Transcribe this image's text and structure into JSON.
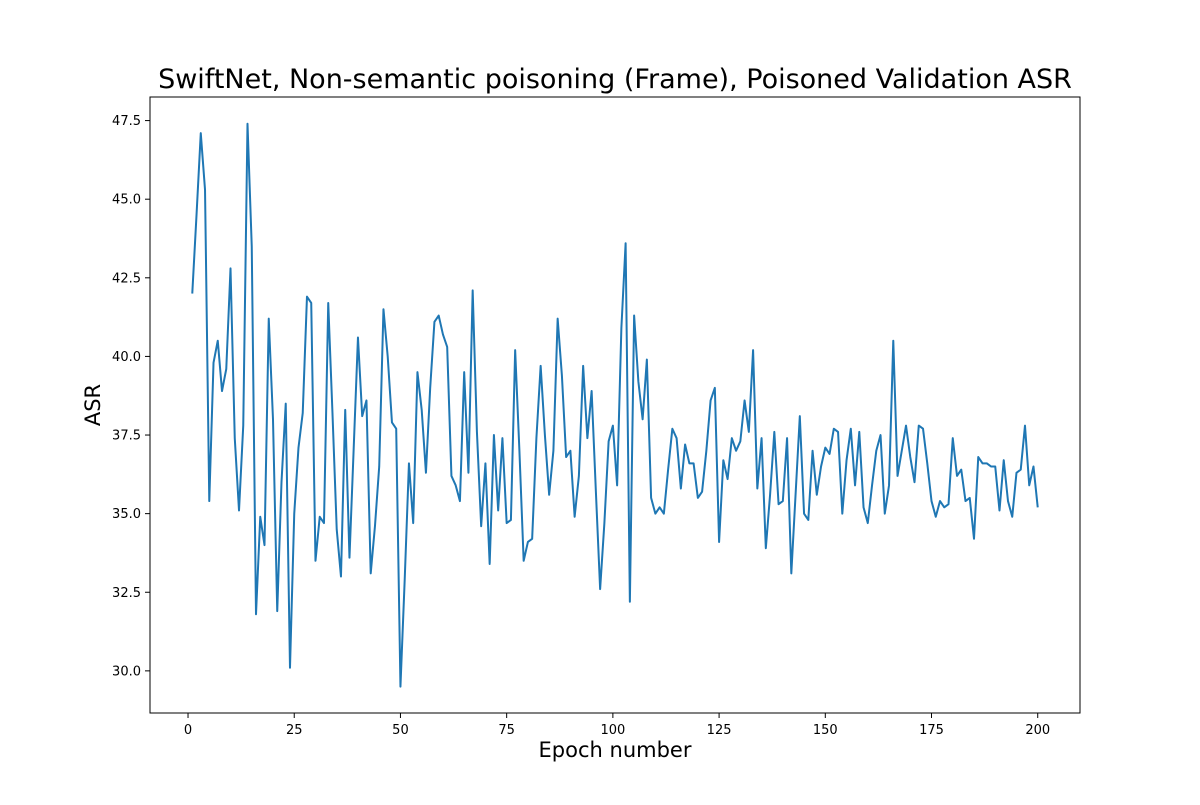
{
  "chart_data": {
    "type": "line",
    "title": "SwiftNet, Non-semantic poisoning (Frame), Poisoned Validation ASR",
    "xlabel": "Epoch number",
    "ylabel": "ASR",
    "xlim": [
      -8.95,
      209.95
    ],
    "ylim": [
      28.66,
      48.25
    ],
    "xticks": [
      0,
      25,
      50,
      75,
      100,
      125,
      150,
      175,
      200
    ],
    "xtick_labels": [
      "0",
      "25",
      "50",
      "75",
      "100",
      "125",
      "150",
      "175",
      "200"
    ],
    "yticks": [
      30.0,
      32.5,
      35.0,
      37.5,
      40.0,
      42.5,
      45.0,
      47.5
    ],
    "ytick_labels": [
      "30.0",
      "32.5",
      "35.0",
      "37.5",
      "40.0",
      "42.5",
      "45.0",
      "47.5"
    ],
    "grid": false,
    "line_color": "#1f77b4",
    "series": [
      {
        "x_start": 1,
        "x_step": 1,
        "values": [
          42.0,
          44.5,
          47.1,
          45.3,
          35.4,
          39.8,
          40.5,
          38.9,
          39.6,
          42.8,
          37.4,
          35.1,
          37.8,
          47.4,
          43.5,
          31.8,
          34.9,
          34.0,
          41.2,
          38.0,
          31.9,
          36.0,
          38.5,
          30.1,
          35.0,
          37.1,
          38.2,
          41.9,
          41.7,
          33.5,
          34.9,
          34.7,
          41.7,
          38.2,
          34.5,
          33.0,
          38.3,
          33.6,
          37.1,
          40.6,
          38.1,
          38.6,
          33.1,
          34.6,
          36.5,
          41.5,
          40.0,
          37.9,
          37.7,
          29.5,
          32.9,
          36.6,
          34.7,
          39.5,
          38.3,
          36.3,
          39.0,
          41.1,
          41.3,
          40.7,
          40.3,
          36.2,
          35.9,
          35.4,
          39.5,
          36.3,
          42.1,
          37.6,
          34.6,
          36.6,
          33.4,
          37.5,
          35.1,
          37.4,
          34.7,
          34.8,
          40.2,
          37.0,
          33.5,
          34.1,
          34.2,
          37.4,
          39.7,
          37.5,
          35.6,
          37.0,
          41.2,
          39.4,
          36.8,
          37.0,
          34.9,
          36.2,
          39.7,
          37.4,
          38.9,
          35.7,
          32.6,
          34.7,
          37.3,
          37.8,
          35.9,
          40.9,
          43.6,
          32.2,
          41.3,
          39.2,
          38.0,
          39.9,
          35.5,
          35.0,
          35.2,
          35.0,
          36.4,
          37.7,
          37.4,
          35.8,
          37.2,
          36.6,
          36.6,
          35.5,
          35.7,
          37.0,
          38.6,
          39.0,
          34.1,
          36.7,
          36.1,
          37.4,
          37.0,
          37.3,
          38.6,
          37.6,
          40.2,
          35.8,
          37.4,
          33.9,
          35.6,
          37.6,
          35.3,
          35.4,
          37.4,
          33.1,
          35.6,
          38.1,
          35.0,
          34.8,
          37.0,
          35.6,
          36.5,
          37.1,
          36.9,
          37.7,
          37.6,
          35.0,
          36.7,
          37.7,
          35.9,
          37.6,
          35.2,
          34.7,
          35.9,
          37.0,
          37.5,
          35.0,
          35.9,
          40.5,
          36.2,
          37.0,
          37.8,
          36.8,
          36.0,
          37.8,
          37.7,
          36.6,
          35.4,
          34.9,
          35.4,
          35.2,
          35.3,
          37.4,
          36.2,
          36.4,
          35.4,
          35.5,
          34.2,
          36.8,
          36.6,
          36.6,
          36.5,
          36.5,
          35.1,
          36.7,
          35.4,
          34.9,
          36.3,
          36.4,
          37.8,
          35.9,
          36.5,
          35.2
        ]
      }
    ]
  }
}
